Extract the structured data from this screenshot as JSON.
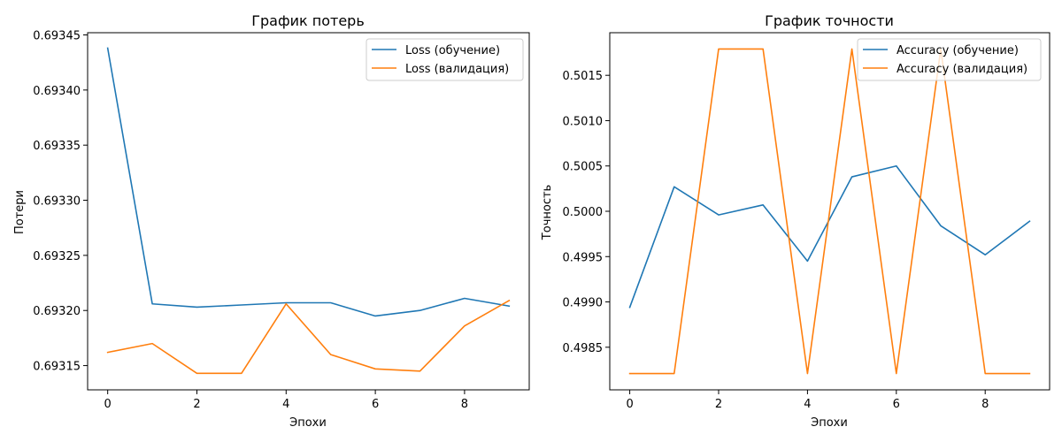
{
  "chart_data": [
    {
      "type": "line",
      "title": "График потерь",
      "xlabel": "Эпохи",
      "ylabel": "Потери",
      "xlim": [
        -0.45,
        9.45
      ],
      "ylim": [
        0.693128,
        0.693452
      ],
      "x_ticks": [
        0,
        2,
        4,
        6,
        8
      ],
      "x_tick_labels": [
        "0",
        "2",
        "4",
        "6",
        "8"
      ],
      "y_ticks": [
        0.69315,
        0.6932,
        0.69325,
        0.6933,
        0.69335,
        0.6934,
        0.69345
      ],
      "y_tick_labels": [
        "0.69315",
        "0.69320",
        "0.69325",
        "0.69330",
        "0.69335",
        "0.69340",
        "0.69345"
      ],
      "grid": false,
      "legend_position": "top-right",
      "x": [
        0,
        1,
        2,
        3,
        4,
        5,
        6,
        7,
        8,
        9
      ],
      "series": [
        {
          "name": "Loss (обучение)",
          "color": "#1f77b4",
          "values": [
            0.693438,
            0.693206,
            0.693203,
            0.693205,
            0.693207,
            0.693207,
            0.693195,
            0.6932,
            0.693211,
            0.693204
          ]
        },
        {
          "name": "Loss (валидация)",
          "color": "#ff7f0e",
          "values": [
            0.693162,
            0.69317,
            0.693143,
            0.693143,
            0.693206,
            0.69316,
            0.693147,
            0.693145,
            0.693186,
            0.693209
          ]
        }
      ]
    },
    {
      "type": "line",
      "title": "График точности",
      "xlabel": "Эпохи",
      "ylabel": "Точность",
      "xlim": [
        -0.45,
        9.45
      ],
      "ylim": [
        0.49803,
        0.50197
      ],
      "x_ticks": [
        0,
        2,
        4,
        6,
        8
      ],
      "x_tick_labels": [
        "0",
        "2",
        "4",
        "6",
        "8"
      ],
      "y_ticks": [
        0.4985,
        0.499,
        0.4995,
        0.5,
        0.5005,
        0.501,
        0.5015
      ],
      "y_tick_labels": [
        "0.4985",
        "0.4990",
        "0.4995",
        "0.5000",
        "0.5005",
        "0.5010",
        "0.5015"
      ],
      "grid": false,
      "legend_position": "top-right",
      "x": [
        0,
        1,
        2,
        3,
        4,
        5,
        6,
        7,
        8,
        9
      ],
      "series": [
        {
          "name": "Accuracy (обучение)",
          "color": "#1f77b4",
          "values": [
            0.49894,
            0.50027,
            0.49996,
            0.50007,
            0.49945,
            0.50038,
            0.5005,
            0.49984,
            0.49952,
            0.49989
          ]
        },
        {
          "name": "Accuracy (валидация)",
          "color": "#ff7f0e",
          "values": [
            0.49821,
            0.49821,
            0.50179,
            0.50179,
            0.49821,
            0.50179,
            0.49821,
            0.50179,
            0.49821,
            0.49821
          ]
        }
      ]
    }
  ]
}
